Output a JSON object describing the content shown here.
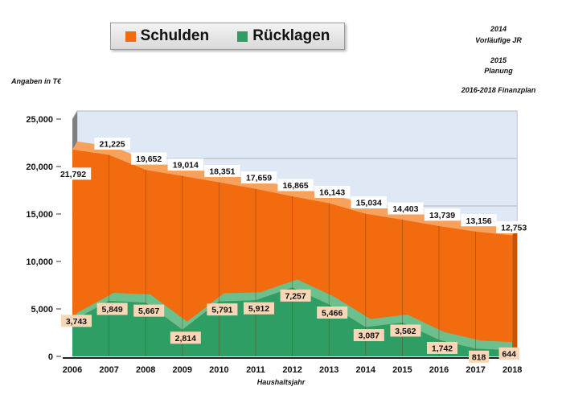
{
  "legend": {
    "items": [
      {
        "label": "Schulden",
        "color": "#f26b0f"
      },
      {
        "label": "Rücklagen",
        "color": "#2e9e64"
      }
    ]
  },
  "notes": {
    "line1": "2014",
    "line2": "Vorläufige JR",
    "line3": "2015",
    "line4": "Planung",
    "line5": "2016-2018 Finanzplan"
  },
  "y_unit": "Angaben in T€",
  "chart_data": {
    "type": "area",
    "categories": [
      "2006",
      "2007",
      "2008",
      "2009",
      "2010",
      "2011",
      "2012",
      "2013",
      "2014",
      "2015",
      "2016",
      "2017",
      "2018"
    ],
    "series": [
      {
        "name": "Schulden",
        "color": "#f26b0f",
        "values": [
          21792,
          21225,
          19652,
          19014,
          18351,
          17659,
          16865,
          16143,
          15034,
          14403,
          13739,
          13156,
          12753
        ],
        "labels": [
          "21,792",
          "21,225",
          "19,652",
          "19,014",
          "18,351",
          "17,659",
          "16,865",
          "16,143",
          "15,034",
          "14,403",
          "13,739",
          "13,156",
          "12,753"
        ]
      },
      {
        "name": "Rücklagen",
        "color": "#2e9e64",
        "values": [
          3743,
          5849,
          5667,
          2814,
          5791,
          5912,
          7257,
          5466,
          3087,
          3562,
          1742,
          818,
          644
        ],
        "labels": [
          "3,743",
          "5,849",
          "5,667",
          "2,814",
          "5,791",
          "5,912",
          "7,257",
          "5,466",
          "3,087",
          "3,562",
          "1,742",
          "818",
          "644"
        ]
      }
    ],
    "yticks": [
      "0",
      "5,000",
      "10,000",
      "15,000",
      "20,000",
      "25,000"
    ],
    "ylim": [
      0,
      25000
    ],
    "xlabel": "Haushaltsjahr",
    "ylabel": "",
    "grid": true,
    "style": "3d"
  }
}
